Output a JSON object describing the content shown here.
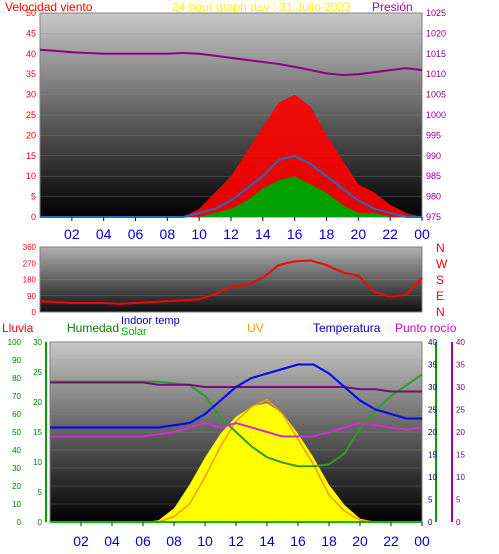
{
  "header": {
    "left_label": "Velocidad viento",
    "title": "24 hour graph day : 31 Julio 2023",
    "right_label": "Presión"
  },
  "panel3_labels": {
    "rain": "Lluvia",
    "humidity": "Humedad",
    "indoor": "Indoor temp",
    "solar": "Solar",
    "uv": "UV",
    "temperature": "Temperatura",
    "dewpoint": "Punto rocío"
  },
  "directions": [
    "N",
    "W",
    "S",
    "E",
    "N"
  ],
  "colors": {
    "wind_gust": "#ff0000",
    "wind_avg": "#1e6fbf",
    "wind_low": "#00a000",
    "pressure": "#8b008b",
    "direction": "#ff0000",
    "temperature": "#0000ff",
    "humidity": "#2e9b2e",
    "dewpoint": "#cc33cc",
    "indoor": "#7a0a7a",
    "solar": "#ffff00",
    "uv": "#ff9900",
    "rain": "#00c000"
  },
  "chart_data": [
    {
      "type": "area",
      "name": "wind-pressure",
      "x_ticks": [
        "02",
        "04",
        "06",
        "08",
        "10",
        "12",
        "14",
        "16",
        "18",
        "20",
        "22",
        "00"
      ],
      "y_left_ticks": [
        "0",
        "5",
        "10",
        "15",
        "20",
        "25",
        "30",
        "35",
        "40",
        "45",
        "50"
      ],
      "y_left_lim": [
        0,
        50
      ],
      "y_right_ticks": [
        "975",
        "980",
        "985",
        "990",
        "995",
        "1000",
        "1005",
        "1010",
        "1015",
        "1020",
        "1025"
      ],
      "y_right_lim": [
        975,
        1025
      ],
      "hours": [
        0,
        1,
        2,
        3,
        4,
        5,
        6,
        7,
        8,
        9,
        10,
        11,
        12,
        13,
        14,
        15,
        16,
        17,
        18,
        19,
        20,
        21,
        22,
        23,
        24
      ],
      "gust": [
        0,
        0,
        0,
        0,
        0,
        0,
        0,
        0,
        0,
        0,
        2,
        6,
        10,
        16,
        22,
        28,
        30,
        27,
        20,
        14,
        8,
        6,
        3,
        1,
        0
      ],
      "average": [
        0,
        0,
        0,
        0,
        0,
        0,
        0,
        0,
        0,
        0,
        1,
        2,
        4,
        7,
        10,
        14,
        15,
        13,
        10,
        7,
        4,
        2,
        1,
        0,
        0
      ],
      "low": [
        0,
        0,
        0,
        0,
        0,
        0,
        0,
        0,
        0,
        0,
        0,
        1,
        2,
        4,
        7,
        9,
        10,
        8,
        6,
        3,
        1,
        1,
        0,
        0,
        0
      ],
      "pressure": [
        1016,
        1015.7,
        1015.4,
        1015.2,
        1015,
        1015,
        1015,
        1015,
        1015,
        1015.2,
        1015,
        1014.5,
        1014,
        1013.5,
        1013,
        1012.5,
        1011.8,
        1011,
        1010.2,
        1009.8,
        1010,
        1010.5,
        1011,
        1011.5,
        1011
      ]
    },
    {
      "type": "line",
      "name": "wind-direction",
      "x_ticks": [
        "02",
        "04",
        "06",
        "08",
        "10",
        "12",
        "14",
        "16",
        "18",
        "20",
        "22",
        "00"
      ],
      "y_ticks": [
        "0",
        "90",
        "180",
        "270",
        "360"
      ],
      "y_lim": [
        0,
        360
      ],
      "hours": [
        0,
        1,
        2,
        3,
        4,
        5,
        6,
        7,
        8,
        9,
        10,
        11,
        12,
        13,
        14,
        15,
        16,
        17,
        18,
        19,
        20,
        21,
        22,
        23,
        24
      ],
      "direction": [
        60,
        55,
        50,
        50,
        50,
        45,
        50,
        55,
        60,
        65,
        70,
        100,
        140,
        150,
        190,
        260,
        280,
        285,
        260,
        220,
        200,
        110,
        85,
        95,
        190
      ]
    },
    {
      "type": "line",
      "name": "temperature-humidity-solar",
      "x_ticks": [
        "02",
        "04",
        "06",
        "08",
        "10",
        "12",
        "14",
        "16",
        "18",
        "20",
        "22",
        "00"
      ],
      "rain_ticks": [
        "0",
        "10",
        "20",
        "30",
        "40",
        "50",
        "60",
        "70",
        "80",
        "90",
        "100"
      ],
      "rain_lim": [
        0,
        100
      ],
      "temp_ticks": [
        "0",
        "5",
        "10",
        "15",
        "20",
        "25",
        "30"
      ],
      "temp_lim": [
        0,
        30
      ],
      "right_ticks_a": [
        "0",
        "5",
        "10",
        "15",
        "20",
        "25",
        "30",
        "35",
        "40"
      ],
      "right_lim_a": [
        0,
        40
      ],
      "right_ticks_b": [
        "0",
        "5",
        "10",
        "15",
        "20",
        "25",
        "30",
        "35",
        "40"
      ],
      "right_lim_b": [
        0,
        40
      ],
      "hours": [
        0,
        1,
        2,
        3,
        4,
        5,
        6,
        7,
        8,
        9,
        10,
        11,
        12,
        13,
        14,
        15,
        16,
        17,
        18,
        19,
        20,
        21,
        22,
        23,
        24
      ],
      "temperature": [
        21,
        21,
        21,
        21,
        21,
        21,
        21,
        21,
        21.5,
        22,
        24,
        27,
        30,
        32,
        33,
        34,
        35,
        35,
        33,
        30,
        27,
        25,
        24,
        23,
        23
      ],
      "humidity": [
        78,
        78,
        78,
        78,
        78,
        78,
        78,
        78,
        77,
        76,
        70,
        58,
        50,
        42,
        36,
        33,
        31,
        31,
        32,
        38,
        52,
        62,
        70,
        76,
        82
      ],
      "dewpoint": [
        19,
        19,
        19,
        19,
        19,
        19,
        19,
        19.5,
        20,
        21,
        22,
        21,
        22,
        21,
        20,
        19,
        19,
        19,
        20,
        21,
        22,
        21.5,
        21,
        20.5,
        21
      ],
      "indoor": [
        31,
        31,
        31,
        31,
        31,
        31,
        31,
        30.5,
        30.5,
        30.5,
        30,
        30,
        30,
        30,
        30,
        30,
        30,
        30,
        30,
        30,
        29.5,
        29.5,
        29,
        29,
        29
      ],
      "solar": [
        0,
        0,
        0,
        0,
        0,
        0,
        0,
        10,
        80,
        220,
        380,
        520,
        620,
        680,
        700,
        640,
        520,
        380,
        220,
        100,
        20,
        0,
        0,
        0,
        0
      ],
      "uv": [
        0,
        0,
        0,
        0,
        0,
        0,
        0,
        0,
        0.3,
        1,
        2.5,
        4.2,
        5.6,
        6.4,
        6.8,
        6,
        4.6,
        3.2,
        1.5,
        0.6,
        0.1,
        0,
        0,
        0,
        0
      ],
      "rain": [
        0,
        0,
        0,
        0,
        0,
        0,
        0,
        0,
        0,
        0,
        0,
        0,
        0,
        0,
        0,
        0,
        0,
        0,
        0,
        0,
        0,
        0,
        0,
        0,
        0
      ]
    }
  ]
}
